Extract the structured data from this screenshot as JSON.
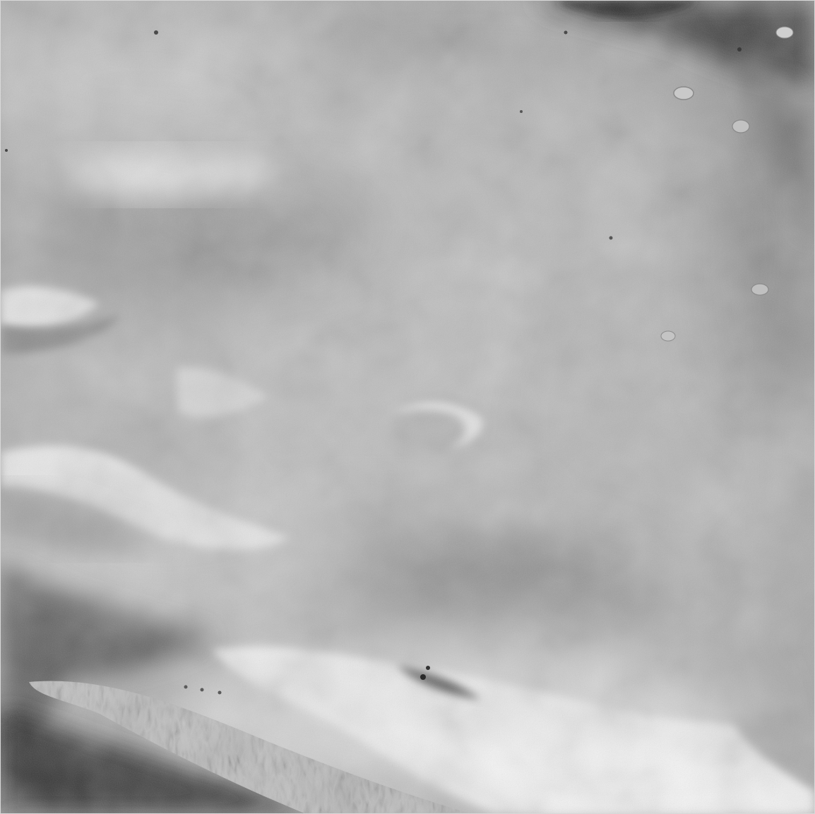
{
  "image": {
    "kind": "grayscale orbital terrain image",
    "palette": {
      "base": "#a9a9a9",
      "light": "#e6e6e6",
      "highlight": "#f7f7f7",
      "shadow": "#3a3a3a",
      "dark": "#222222"
    },
    "features": [
      "upper-right-dark-ridge",
      "upper-left-bright-streak",
      "left-scarp-upper",
      "central-crater-rim",
      "left-scarp-middle",
      "lower-bright-ridge",
      "lower-left-dune-field",
      "lower-left-shadow",
      "scattered-small-craters"
    ]
  }
}
